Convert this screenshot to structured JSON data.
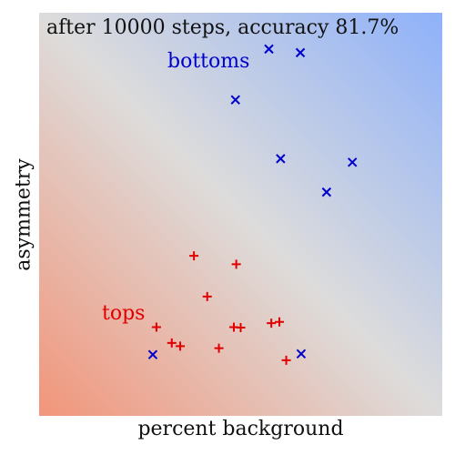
{
  "chart_data": {
    "type": "scatter",
    "title": "after 10000 steps, accuracy 81.7%",
    "xlabel": "percent background",
    "ylabel": "asymmetry",
    "xlim": [
      0,
      1
    ],
    "ylim": [
      0,
      1
    ],
    "grid": false,
    "background": "diverging gradient: blue top-right (bottoms), red bottom-left (tops)",
    "colors": {
      "blue": "#0000cc",
      "red": "#e00000",
      "gradient_blue": "#8eb1fa",
      "gradient_mid": "#dddcdb",
      "gradient_red": "#f2957a"
    },
    "series": [
      {
        "name": "bottoms",
        "marker": "x",
        "color": "#0000cc",
        "label": "bottoms",
        "points": [
          [
            0.57,
            0.91
          ],
          [
            0.648,
            0.901
          ],
          [
            0.487,
            0.784
          ],
          [
            0.599,
            0.638
          ],
          [
            0.777,
            0.629
          ],
          [
            0.713,
            0.555
          ],
          [
            0.282,
            0.152
          ],
          [
            0.65,
            0.154
          ]
        ]
      },
      {
        "name": "tops",
        "marker": "+",
        "color": "#e00000",
        "label": "tops",
        "points": [
          [
            0.384,
            0.397
          ],
          [
            0.489,
            0.376
          ],
          [
            0.417,
            0.296
          ],
          [
            0.291,
            0.22
          ],
          [
            0.483,
            0.22
          ],
          [
            0.5,
            0.219
          ],
          [
            0.576,
            0.23
          ],
          [
            0.596,
            0.233
          ],
          [
            0.329,
            0.181
          ],
          [
            0.35,
            0.173
          ],
          [
            0.446,
            0.168
          ],
          [
            0.613,
            0.138
          ]
        ]
      }
    ],
    "annotations": [
      {
        "text": "bottoms",
        "series": "bottoms"
      },
      {
        "text": "tops",
        "series": "tops"
      }
    ]
  }
}
